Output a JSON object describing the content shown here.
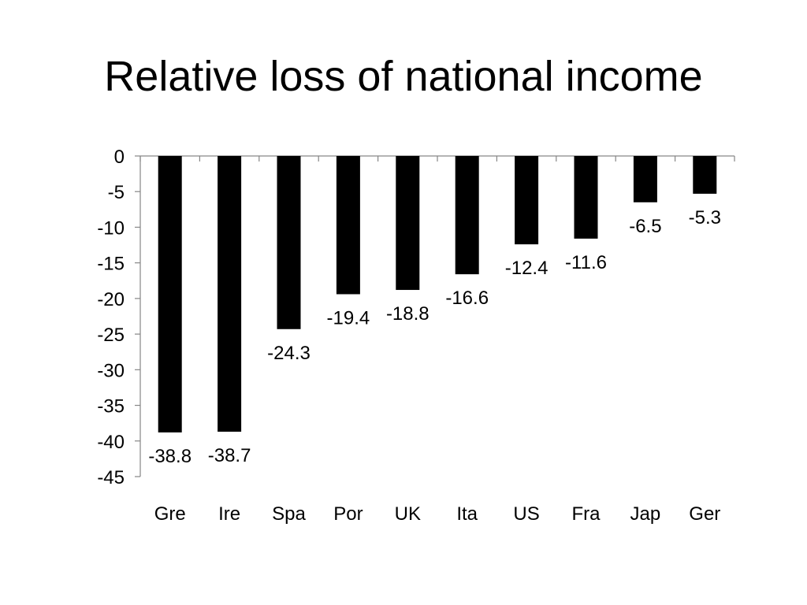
{
  "title": "Relative loss of national income",
  "chart_data": {
    "type": "bar",
    "title": "Relative loss of national income",
    "xlabel": "",
    "ylabel": "",
    "categories": [
      "Gre",
      "Ire",
      "Spa",
      "Por",
      "UK",
      "Ita",
      "US",
      "Fra",
      "Jap",
      "Ger"
    ],
    "values": [
      -38.8,
      -38.7,
      -24.3,
      -19.4,
      -18.8,
      -16.6,
      -12.4,
      -11.6,
      -6.5,
      -5.3
    ],
    "data_labels": [
      "-38.8",
      "-38.7",
      "-24.3",
      "-19.4",
      "-18.8",
      "-16.6",
      "-12.4",
      "-11.6",
      "-6.5",
      "-5.3"
    ],
    "ylim": [
      -45,
      0
    ],
    "yticks": [
      0,
      -5,
      -10,
      -15,
      -20,
      -25,
      -30,
      -35,
      -40,
      -45
    ],
    "ytick_labels": [
      "0",
      "-5",
      "-10",
      "-15",
      "-20",
      "-25",
      "-30",
      "-35",
      "-40",
      "-45"
    ],
    "grid": false,
    "legend": "none",
    "bar_color": "#000000"
  }
}
